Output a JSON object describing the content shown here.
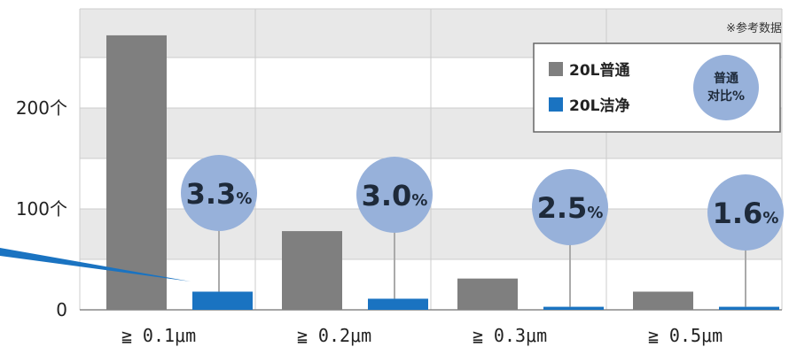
{
  "chart_data": {
    "type": "bar",
    "categories": [
      "≧ 0.1μm",
      "≧ 0.2μm",
      "≧ 0.3μm",
      "≧ 0.5μm"
    ],
    "series": [
      {
        "name": "20L普通",
        "color": "#7f7f7f",
        "values": [
          272,
          78,
          31,
          18
        ]
      },
      {
        "name": "20L洁净",
        "color": "#1a73c1",
        "values": [
          18,
          11,
          3,
          3
        ]
      }
    ],
    "ratios": [
      {
        "value": "3.3",
        "unit": "%"
      },
      {
        "value": "3.0",
        "unit": "%"
      },
      {
        "value": "2.5",
        "unit": "%"
      },
      {
        "value": "1.6",
        "unit": "%"
      }
    ],
    "yticks": [
      {
        "value": 0,
        "label": "0"
      },
      {
        "value": 100,
        "label": "100个"
      },
      {
        "value": 200,
        "label": "200个"
      }
    ],
    "ylim": [
      0,
      300
    ],
    "grid": true,
    "legend_position": "top-right",
    "legend_circle_lines": [
      "普通",
      "对比%"
    ],
    "note": "※参考数据",
    "colors": {
      "band": "#e8e8e8",
      "circle": "#97b1da",
      "grid": "#cccccc",
      "arrow": "#1a73c1"
    }
  }
}
